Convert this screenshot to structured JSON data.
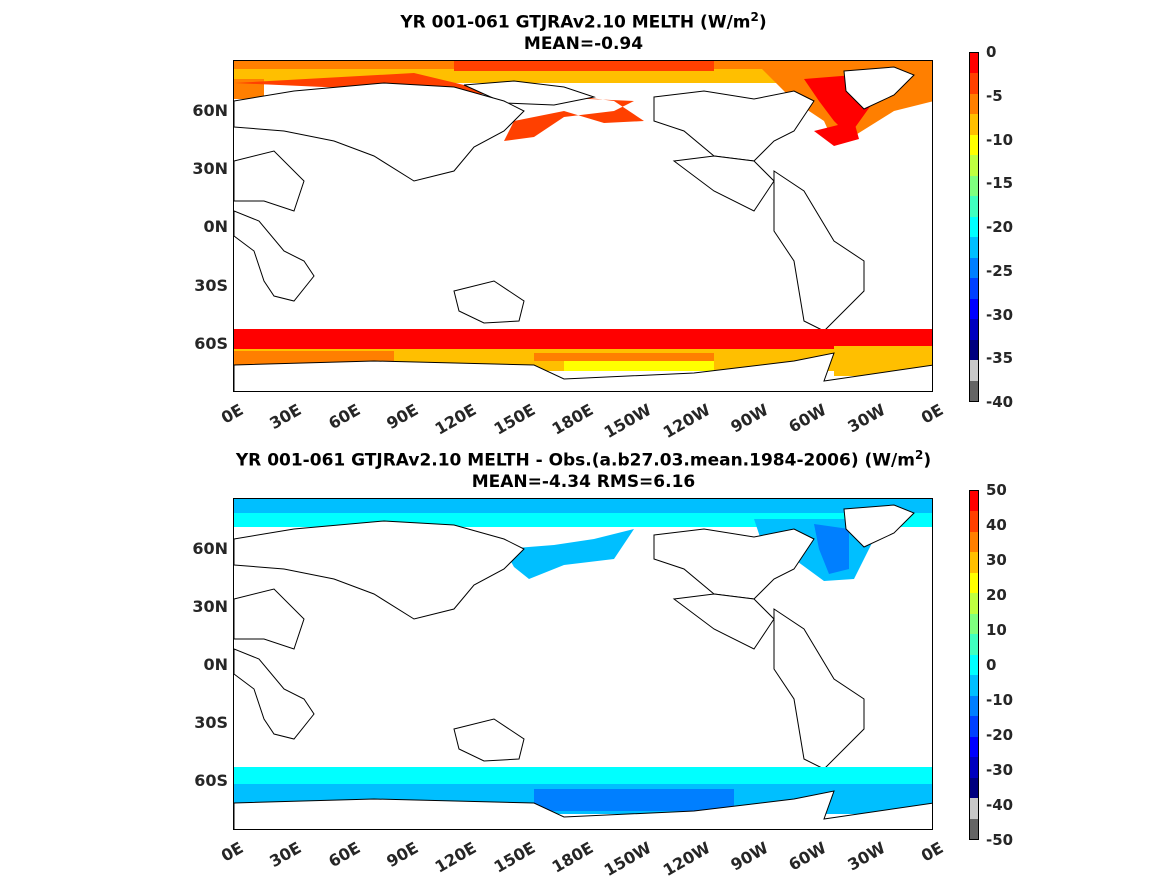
{
  "panels": [
    {
      "title_line1_pre": "YR 001-061 GTJRAv2.10  MELTH (W/m",
      "title_line1_sup": "2",
      "title_line1_post": ")",
      "title_line2": "MEAN=-0.94",
      "colorbar_ticks": [
        "0",
        "-5",
        "-10",
        "-15",
        "-20",
        "-25",
        "-30",
        "-35",
        "-40"
      ],
      "colorbar_colors": [
        "#ff0000",
        "#ff4000",
        "#ff7f00",
        "#ffbf00",
        "#ffff00",
        "#bfff40",
        "#7fff7f",
        "#40ffbf",
        "#00ffff",
        "#00bfff",
        "#007fff",
        "#0040ff",
        "#0000ff",
        "#0000bf",
        "#00007f",
        "#c8c8c8",
        "#646464"
      ]
    },
    {
      "title_line1_pre": "YR 001-061 GTJRAv2.10 MELTH - Obs.(a.b27.03.mean.1984-2006) (W/m",
      "title_line1_sup": "2",
      "title_line1_post": ")",
      "title_line2": "MEAN=-4.34 RMS=6.16",
      "colorbar_ticks": [
        "50",
        "40",
        "30",
        "20",
        "10",
        "0",
        "-10",
        "-20",
        "-30",
        "-40",
        "-50"
      ],
      "colorbar_colors": [
        "#ff0000",
        "#ff4000",
        "#ff7f00",
        "#ffbf00",
        "#ffff00",
        "#bfff40",
        "#7fff7f",
        "#40ffbf",
        "#00ffff",
        "#00bfff",
        "#007fff",
        "#0040ff",
        "#0000ff",
        "#0000bf",
        "#00007f",
        "#c8c8c8",
        "#646464"
      ]
    }
  ],
  "y_ticks": [
    "60N",
    "30N",
    "0N",
    "30S",
    "60S"
  ],
  "x_ticks": [
    "0E",
    "30E",
    "60E",
    "90E",
    "120E",
    "150E",
    "180E",
    "150W",
    "120W",
    "90W",
    "60W",
    "30W",
    "0E"
  ]
}
